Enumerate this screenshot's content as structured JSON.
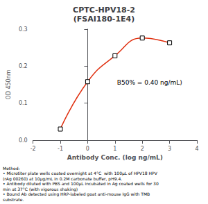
{
  "chart_data": {
    "type": "line",
    "title": "CPTC-HPV18-2\n(FSAI180-1E4)",
    "xlabel": "Antibody Conc. (log ng/mL)",
    "ylabel": "OD 450nm",
    "x": [
      -1,
      0,
      1,
      2,
      3
    ],
    "values": [
      0.03,
      0.158,
      0.228,
      0.276,
      0.263
    ],
    "color": "#e03010",
    "marker": "square",
    "line_style": "solid",
    "xlim": [
      -2,
      4
    ],
    "xticks": [
      -2,
      -1,
      0,
      1,
      2,
      3,
      4
    ],
    "ylim": [
      0.0,
      0.3
    ],
    "yticks": [
      {
        "value": 0.0,
        "label": "0.0"
      },
      0.1,
      0.2,
      0.3
    ],
    "grid": false,
    "annotations": [
      {
        "text": "B50% = 0.40 ng/mL)",
        "x": 1.05,
        "y": 0.145
      }
    ],
    "caption": "Method:\n• Microtiter plate wells coated overnight at 4°C  with 100μL of HPV18 HPV\n(rAg 00260) at 10μg/mL in 0.2M carbonate buffer, pH9.4.\n• Antibody diluted with PBS and 100μL incubated in Ag coated wells for 30\nmin at 37°C (with vigorous shaking)\n• Bound Ab detected using HRP-labeled goat anti-mouse IgG with TMB\nsubstrate."
  }
}
